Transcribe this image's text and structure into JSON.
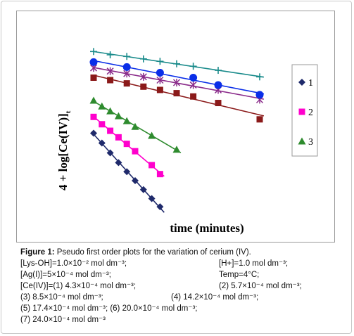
{
  "chart_data": {
    "type": "scatter",
    "ylabel": "4 + log[Ce(IV)]",
    "ylabel_sub": "t",
    "xlabel": "time (minutes)",
    "series": [
      {
        "name": "1",
        "marker": "diamond",
        "color": "#1f2a6b",
        "x": [
          0,
          1,
          2,
          3,
          4,
          5,
          6,
          7,
          8
        ],
        "y": [
          6.6,
          6.0,
          5.4,
          4.8,
          4.25,
          3.7,
          3.15,
          2.6,
          2.1
        ]
      },
      {
        "name": "2",
        "marker": "square",
        "color": "#ff00cc",
        "x": [
          0,
          1,
          2,
          3,
          4,
          5,
          7,
          8
        ],
        "y": [
          7.6,
          7.15,
          6.75,
          6.35,
          5.95,
          5.5,
          4.65,
          4.1
        ]
      },
      {
        "name": "3",
        "marker": "triangle",
        "color": "#2e8b2e",
        "x": [
          0,
          1,
          2,
          3,
          4,
          5,
          7,
          10
        ],
        "y": [
          8.6,
          8.25,
          7.95,
          7.65,
          7.35,
          7.0,
          6.45,
          5.6
        ]
      },
      {
        "name": "",
        "marker": "square",
        "color": "#8b1a1a",
        "x": [
          0,
          2,
          4,
          6,
          8,
          10,
          12,
          15,
          20
        ],
        "y": [
          10.0,
          9.85,
          9.65,
          9.45,
          9.25,
          9.05,
          8.85,
          8.45,
          7.45
        ]
      },
      {
        "name": "",
        "marker": "star",
        "color": "#8b2c8b",
        "x": [
          0,
          2,
          4,
          6,
          8,
          10,
          12,
          15,
          20
        ],
        "y": [
          10.6,
          10.4,
          10.25,
          10.05,
          9.85,
          9.7,
          9.55,
          9.25,
          8.65
        ]
      },
      {
        "name": "",
        "marker": "circle",
        "color": "#0a2ee8",
        "x": [
          0,
          4,
          8,
          12,
          15,
          20
        ],
        "y": [
          10.95,
          10.65,
          10.3,
          10.0,
          9.55,
          8.95
        ]
      },
      {
        "name": "",
        "marker": "plus",
        "color": "#1a8b8b",
        "x": [
          0,
          2,
          4,
          6,
          8,
          10,
          12,
          15,
          20
        ],
        "y": [
          11.6,
          11.4,
          11.3,
          11.15,
          11.0,
          10.85,
          10.7,
          10.45,
          10.05
        ]
      }
    ],
    "legend": [
      "1",
      "2",
      "3"
    ],
    "legend_position": "right"
  },
  "caption": {
    "figure_label": "Figure 1:",
    "figure_text": " Pseudo first order plots for the variation of cerium (IV).",
    "lines": [
      {
        "left": "[Lys-OH]=1.0×10⁻² mol dm⁻³;",
        "right": "[H+]=1.0 mol dm⁻³;"
      },
      {
        "left": "[Ag(I)]=5×10⁻⁴ mol dm⁻³;",
        "right": "Temp=4°C;"
      },
      {
        "left": "[Ce(IV)]=(1) 4.3×10⁻⁴ mol dm⁻³;",
        "right": "(2) 5.7×10⁻⁴ mol dm⁻³;"
      },
      {
        "left": "(3) 8.5×10⁻⁴ mol dm⁻³;",
        "right": "(4) 14.2×10⁻⁴ mol dm⁻³;"
      },
      {
        "left": "(5) 17.4×10⁻⁴ mol dm⁻³; (6) 20.0×10⁻⁴ mol dm⁻³;",
        "right": ""
      },
      {
        "left": "(7) 24.0×10⁻⁴ mol dm⁻³",
        "right": ""
      }
    ]
  }
}
